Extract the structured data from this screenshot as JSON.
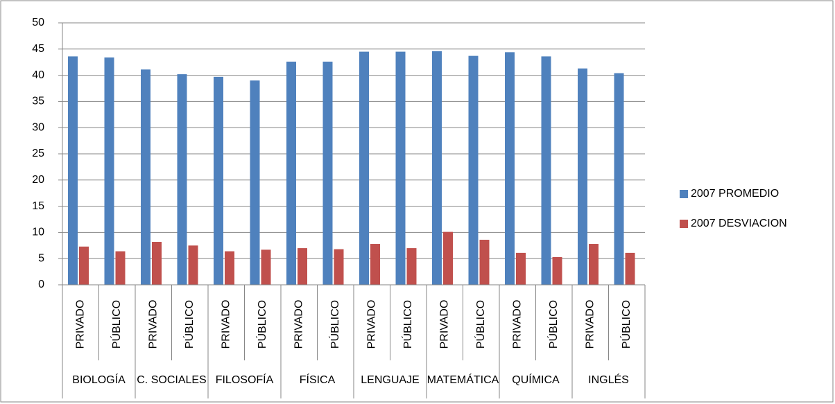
{
  "chart_data": {
    "type": "bar",
    "categories": [
      "PRIVADO",
      "PÚBLICO",
      "PRIVADO",
      "PÚBLICO",
      "PRIVADO",
      "PÚBLICO",
      "PRIVADO",
      "PÚBLICO",
      "PRIVADO",
      "PÚBLICO",
      "PRIVADO",
      "PÚBLICO",
      "PRIVADO",
      "PÚBLICO",
      "PRIVADO",
      "PÚBLICO"
    ],
    "groups": [
      "BIOLOGÍA",
      "C. SOCIALES",
      "FILOSOFÍA",
      "FÍSICA",
      "LENGUAJE",
      "MATEMÁTICA",
      "QUÍMICA",
      "INGLÉS"
    ],
    "series": [
      {
        "name": "2007 PROMEDIO",
        "color": "#4f81bd",
        "values": [
          43.6,
          43.4,
          41.1,
          40.2,
          39.7,
          39.0,
          42.6,
          42.6,
          44.5,
          44.5,
          44.6,
          43.7,
          44.4,
          43.6,
          41.3,
          40.4
        ]
      },
      {
        "name": "2007 DESVIACION",
        "color": "#c0504d",
        "values": [
          7.3,
          6.4,
          8.2,
          7.5,
          6.4,
          6.7,
          7.0,
          6.8,
          7.8,
          7.0,
          10.1,
          8.6,
          6.1,
          5.3,
          7.8,
          6.1
        ]
      }
    ],
    "ylim": [
      0,
      50
    ],
    "yticks": [
      0,
      5,
      10,
      15,
      20,
      25,
      30,
      35,
      40,
      45,
      50
    ],
    "grid": true,
    "legend": "right"
  }
}
